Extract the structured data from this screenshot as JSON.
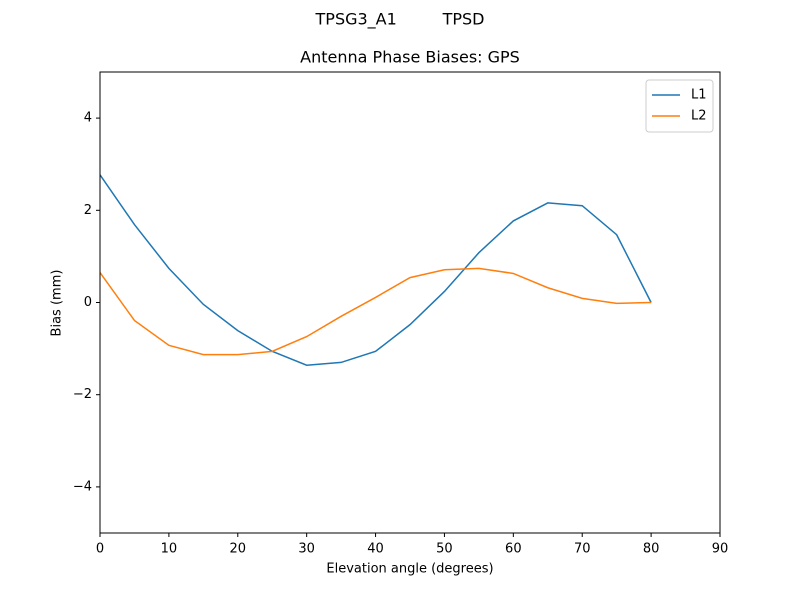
{
  "chart_data": {
    "type": "line",
    "suptitle": "TPSG3_A1         TPSD",
    "title": "Antenna Phase Biases: GPS",
    "xlabel": "Elevation angle (degrees)",
    "ylabel": "Bias (mm)",
    "x": [
      0,
      5,
      10,
      15,
      20,
      25,
      30,
      35,
      40,
      45,
      50,
      55,
      60,
      65,
      70,
      75,
      80
    ],
    "series": [
      {
        "name": "L1",
        "color": "#1f77b4",
        "values": [
          2.77,
          1.69,
          0.74,
          -0.04,
          -0.61,
          -1.06,
          -1.36,
          -1.3,
          -1.06,
          -0.48,
          0.24,
          1.08,
          1.77,
          2.16,
          2.1,
          1.47,
          0.0
        ]
      },
      {
        "name": "L2",
        "color": "#ff7f0e",
        "values": [
          0.65,
          -0.39,
          -0.93,
          -1.13,
          -1.13,
          -1.06,
          -0.74,
          -0.3,
          0.11,
          0.54,
          0.71,
          0.74,
          0.63,
          0.32,
          0.09,
          -0.02,
          0.0
        ]
      }
    ],
    "xlim": [
      0,
      90
    ],
    "xticks": [
      0,
      10,
      20,
      30,
      40,
      50,
      60,
      70,
      80,
      90
    ],
    "ylim": [
      -5,
      5
    ],
    "yticks": [
      {
        "value": -4,
        "label": "−4"
      },
      {
        "value": -2,
        "label": "−2"
      },
      0,
      2,
      4
    ],
    "grid": false,
    "legend": "upper right"
  }
}
